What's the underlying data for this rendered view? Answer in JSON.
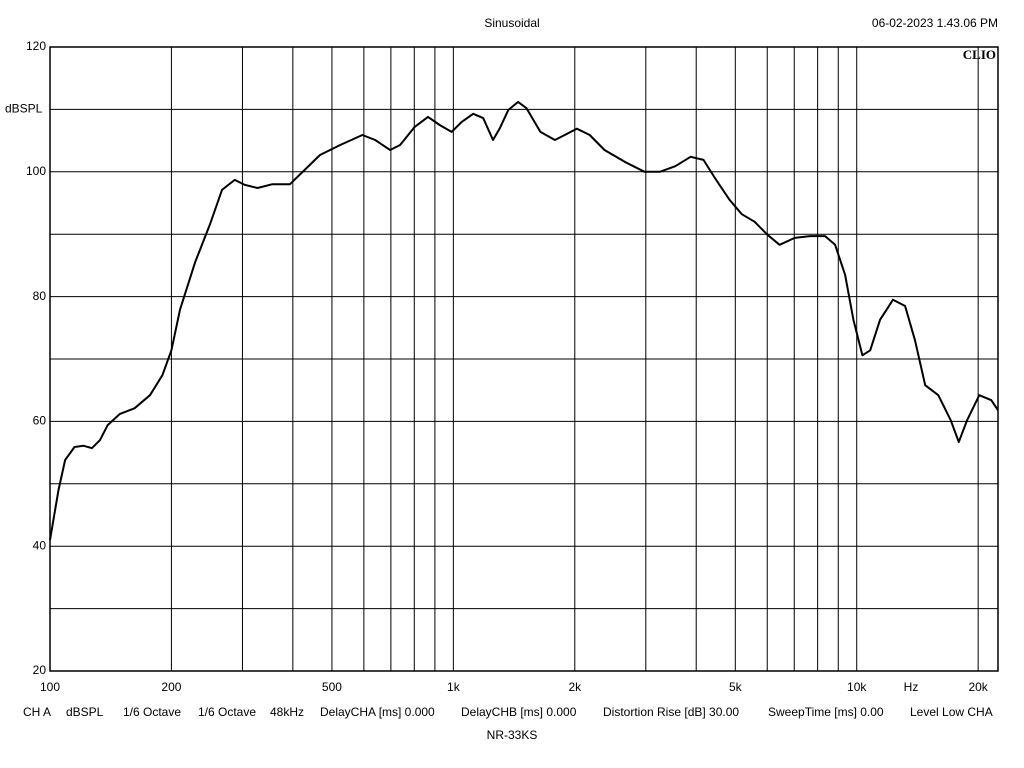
{
  "chart_data": {
    "type": "line",
    "title": "Sinusoidal",
    "timestamp": "06-02-2023 1.43.06 PM",
    "brand": "CLIO",
    "ylabel": "dBSPL",
    "xlabel": "Hz",
    "caption": "NR-33KS",
    "footer_info": [
      "CH A",
      "dBSPL",
      "1/6 Octave",
      "1/6 Octave",
      "48kHz",
      "DelayCHA [ms] 0.000",
      "DelayCHB [ms] 0.000",
      "Distortion Rise [dB] 30.00",
      "SweepTime [ms] 0.00",
      "Level Low CHA"
    ],
    "xscale": "log",
    "xlim": [
      100,
      22400
    ],
    "ylim": [
      20,
      120
    ],
    "xticks": [
      100,
      200,
      500,
      {
        "value": 1000,
        "label": "1k"
      },
      {
        "value": 2000,
        "label": "2k"
      },
      {
        "value": 5000,
        "label": "5k"
      },
      {
        "value": 10000,
        "label": "10k"
      },
      {
        "value": 20000,
        "label": "20k"
      }
    ],
    "x_minor_grid": [
      300,
      400,
      600,
      700,
      800,
      900,
      3000,
      4000,
      6000,
      7000,
      8000,
      9000
    ],
    "yticks": [
      20,
      40,
      60,
      80,
      100,
      120
    ],
    "y_minor_grid": [
      30,
      50,
      70,
      90,
      110
    ],
    "grid": true,
    "color": "#000000",
    "x": [
      100,
      105,
      109,
      115,
      121,
      127,
      133,
      139,
      149,
      162,
      177,
      190,
      200,
      210,
      229,
      249,
      267,
      287,
      304,
      327,
      355,
      393,
      428,
      467,
      524,
      595,
      640,
      697,
      738,
      802,
      865,
      925,
      990,
      1049,
      1120,
      1186,
      1254,
      1304,
      1368,
      1447,
      1518,
      1644,
      1785,
      1888,
      2024,
      2178,
      2370,
      2660,
      2980,
      3250,
      3550,
      3875,
      4170,
      4450,
      4840,
      5190,
      5580,
      6010,
      6440,
      7020,
      7660,
      8350,
      8840,
      9360,
      9810,
      10330,
      10800,
      11430,
      12300,
      13180,
      13950,
      14780,
      15930,
      17100,
      17910,
      18780,
      20130,
      21560,
      22400
    ],
    "values": [
      41.0,
      49.0,
      53.8,
      55.9,
      56.1,
      55.7,
      57.0,
      59.4,
      61.2,
      62.1,
      64.2,
      67.4,
      71.4,
      77.9,
      85.5,
      91.5,
      97.1,
      98.7,
      97.9,
      97.4,
      98.0,
      98.0,
      100.3,
      102.7,
      104.3,
      105.9,
      105.1,
      103.5,
      104.3,
      107.2,
      108.8,
      107.5,
      106.4,
      108.0,
      109.3,
      108.6,
      105.1,
      107.0,
      109.9,
      111.2,
      110.2,
      106.4,
      105.1,
      105.9,
      106.9,
      105.9,
      103.5,
      101.6,
      100.0,
      100.0,
      100.9,
      102.4,
      101.9,
      99.0,
      95.5,
      93.2,
      92.0,
      89.9,
      88.3,
      89.4,
      89.7,
      89.7,
      88.3,
      83.5,
      76.3,
      70.6,
      71.4,
      76.3,
      79.5,
      78.5,
      73.0,
      65.8,
      64.2,
      60.2,
      56.7,
      60.2,
      64.2,
      63.4,
      61.8
    ]
  }
}
